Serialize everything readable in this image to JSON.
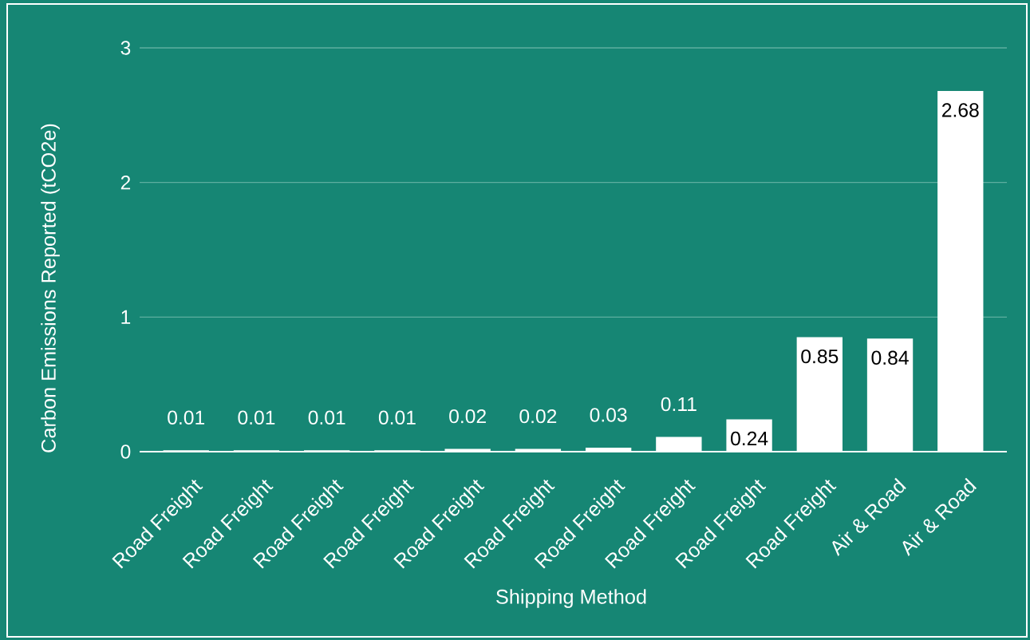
{
  "chart_data": {
    "type": "bar",
    "xlabel": "Shipping Method",
    "ylabel": "Carbon Emissions Reported (tCO2e)",
    "categories": [
      "Road Freight",
      "Road Freight",
      "Road Freight",
      "Road Freight",
      "Road Freight",
      "Road Freight",
      "Road Freight",
      "Road Freight",
      "Road Freight",
      "Road Freight",
      "Air & Road",
      "Air & Road"
    ],
    "values": [
      0.01,
      0.01,
      0.01,
      0.01,
      0.02,
      0.02,
      0.03,
      0.11,
      0.24,
      0.85,
      0.84,
      2.68
    ],
    "color": "#ffffff",
    "ylim": [
      0,
      3
    ],
    "yticks": [
      0,
      1,
      2,
      3
    ],
    "grid": "y",
    "data_labels": true
  }
}
